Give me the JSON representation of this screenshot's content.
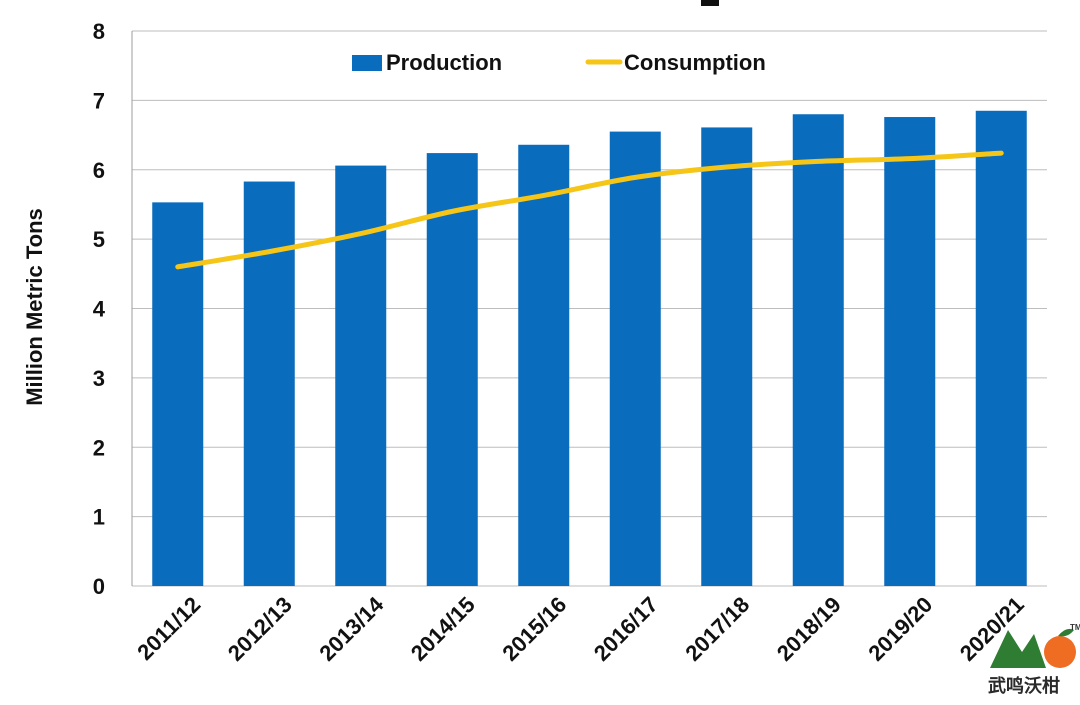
{
  "chart_data": {
    "type": "bar",
    "title": "",
    "xlabel": "",
    "ylabel": "Million Metric Tons",
    "ylim": [
      0,
      8
    ],
    "yticks": [
      "0",
      "1",
      "2",
      "3",
      "4",
      "5",
      "6",
      "7",
      "8"
    ],
    "grid": true,
    "legend_position": "top",
    "categories": [
      "2011/12",
      "2012/13",
      "2013/14",
      "2014/15",
      "2015/16",
      "2016/17",
      "2017/18",
      "2018/19",
      "2019/20",
      "2020/21"
    ],
    "series": [
      {
        "name": "Production",
        "kind": "bar",
        "color": "#0a6cbc",
        "values": [
          5.53,
          5.83,
          6.06,
          6.24,
          6.36,
          6.55,
          6.61,
          6.8,
          6.76,
          6.85
        ]
      },
      {
        "name": "Consumption",
        "kind": "line",
        "color": "#f5c518",
        "values": [
          4.6,
          4.82,
          5.08,
          5.4,
          5.63,
          5.89,
          6.04,
          6.12,
          6.16,
          6.24
        ]
      }
    ]
  },
  "watermark": {
    "text": "武鸣沃柑",
    "icon": "orange-fruit-logo",
    "colors": {
      "mountain": "#2e7d32",
      "fruit": "#ef6c23"
    }
  }
}
